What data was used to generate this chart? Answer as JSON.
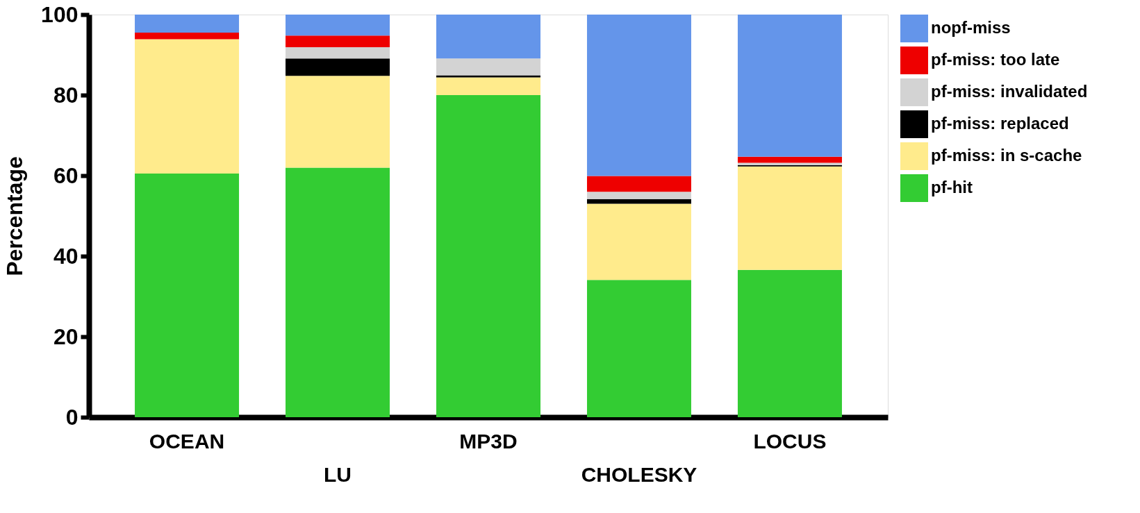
{
  "chart_data": {
    "type": "bar",
    "stacked": true,
    "ylabel": "Percentage",
    "categories": [
      "OCEAN",
      "LU",
      "MP3D",
      "CHOLESKY",
      "LOCUS"
    ],
    "series": [
      {
        "name": "pf-hit",
        "color": "#33cc33",
        "values": [
          60.5,
          62,
          80,
          34.1,
          36.6
        ]
      },
      {
        "name": "pf-miss: in s-cache",
        "color": "#ffeb8c",
        "values": [
          33.4,
          22.8,
          4.4,
          18.9,
          25.7
        ]
      },
      {
        "name": "pf-miss: replaced",
        "color": "#000000",
        "values": [
          0,
          4.3,
          0.5,
          1.2,
          0.3
        ]
      },
      {
        "name": "pf-miss: invalidated",
        "color": "#d3d3d3",
        "values": [
          0,
          2.8,
          4.2,
          1.8,
          0.6
        ]
      },
      {
        "name": "pf-miss: too late",
        "color": "#ee0000",
        "values": [
          1.6,
          2.9,
          0,
          3.9,
          1.5
        ]
      },
      {
        "name": "nopf-miss",
        "color": "#6495ea",
        "values": [
          4.5,
          5.2,
          10.9,
          40.1,
          35.3
        ]
      }
    ],
    "ylim": [
      0,
      100
    ],
    "yticks": [
      0,
      20,
      40,
      60,
      80,
      100
    ],
    "grid": false,
    "legend": "top right"
  }
}
